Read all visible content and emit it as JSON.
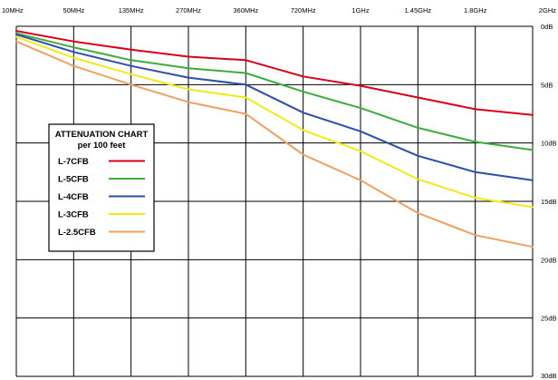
{
  "chart_data": {
    "type": "line",
    "title": "",
    "xlabel": "",
    "ylabel": "",
    "x_ticks": [
      "10MHz",
      "50MHz",
      "135MHz",
      "270MHz",
      "360MHz",
      "720MHz",
      "1GHz",
      "1.45GHz",
      "1.8GHz",
      "2GHz"
    ],
    "y_ticks": [
      "0dB",
      "5dB",
      "10dB",
      "15dB",
      "20dB",
      "25dB",
      "30dB"
    ],
    "ylim": [
      0,
      30
    ],
    "y_inverted": true,
    "grid": true,
    "legend": {
      "title_lines": [
        "ATTENUATION CHART",
        "per 100 feet"
      ],
      "placement": "middle-left"
    },
    "x": [
      "10MHz",
      "50MHz",
      "135MHz",
      "270MHz",
      "360MHz",
      "720MHz",
      "1GHz",
      "1.45GHz",
      "1.8GHz",
      "2GHz"
    ],
    "series": [
      {
        "name": "L-7CFB",
        "color": "#d9001b",
        "values": [
          0.4,
          1.3,
          2.0,
          2.6,
          2.9,
          4.3,
          5.1,
          6.1,
          7.1,
          7.6
        ]
      },
      {
        "name": "L-5CFB",
        "color": "#3cad3c",
        "values": [
          0.6,
          1.8,
          2.9,
          3.6,
          4.0,
          5.6,
          7.0,
          8.7,
          9.9,
          10.6
        ]
      },
      {
        "name": "L-4CFB",
        "color": "#2e4ea8",
        "values": [
          0.7,
          2.2,
          3.4,
          4.4,
          5.0,
          7.4,
          9.0,
          11.1,
          12.5,
          13.2
        ]
      },
      {
        "name": "L-3CFB",
        "color": "#f1ea1a",
        "values": [
          0.9,
          2.7,
          4.1,
          5.4,
          6.1,
          8.9,
          10.7,
          13.1,
          14.7,
          15.5
        ]
      },
      {
        "name": "L-2.5CFB",
        "color": "#f0a060",
        "values": [
          1.3,
          3.4,
          5.0,
          6.5,
          7.5,
          11.0,
          13.2,
          16.0,
          17.9,
          18.9
        ]
      }
    ]
  }
}
